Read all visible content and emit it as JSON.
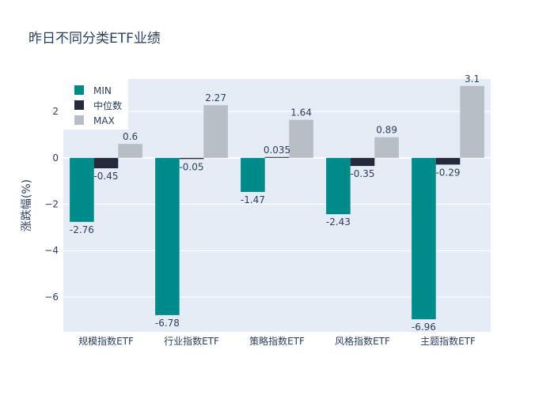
{
  "chart_data": {
    "type": "bar",
    "title": "昨日不同分类ETF业绩",
    "xlabel": "",
    "ylabel": "涨跌幅(%)",
    "categories": [
      "规模指数ETF",
      "行业指数ETF",
      "策略指数ETF",
      "风格指数ETF",
      "主题指数ETF"
    ],
    "series": [
      {
        "name": "MIN",
        "color": "#008b8b",
        "values": [
          -2.76,
          -6.78,
          -1.47,
          -2.43,
          -6.96
        ],
        "labels": [
          "-2.76",
          "-6.78",
          "-1.47",
          "-2.43",
          "-6.96"
        ]
      },
      {
        "name": "中位数",
        "color": "#242a3c",
        "values": [
          -0.45,
          -0.05,
          0.035,
          -0.35,
          -0.29
        ],
        "labels": [
          "-0.45",
          "-0.05",
          "0.035",
          "-0.35",
          "-0.29"
        ]
      },
      {
        "name": "MAX",
        "color": "#b8bec6",
        "values": [
          0.6,
          2.27,
          1.64,
          0.89,
          3.1
        ],
        "labels": [
          "0.6",
          "2.27",
          "1.64",
          "0.89",
          "3.1"
        ]
      }
    ],
    "ylim": [
      -7.5,
      3.4
    ],
    "yticks": [
      -6,
      -4,
      -2,
      0,
      2
    ],
    "ytick_labels": [
      "−6",
      "−4",
      "−2",
      "0",
      "2"
    ],
    "grid": true,
    "legend_position": "top-left",
    "plot_background": "#e5ecf6"
  }
}
